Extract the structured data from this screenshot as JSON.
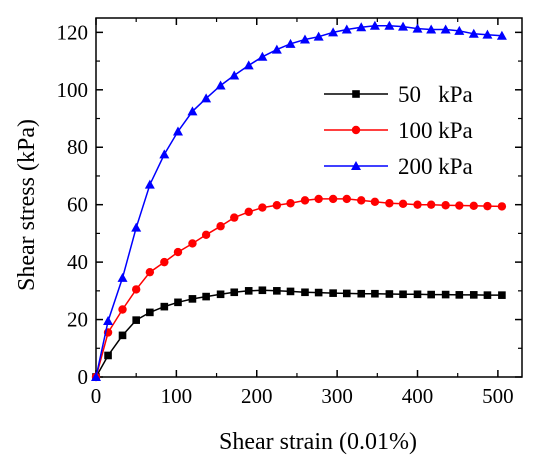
{
  "chart_data": {
    "type": "line",
    "xlabel": "Shear strain (0.01%)",
    "ylabel": "Shear stress (kPa)",
    "xlim": [
      0,
      530
    ],
    "ylim": [
      0,
      125
    ],
    "xticks": [
      0,
      100,
      200,
      300,
      400,
      500
    ],
    "yticks": [
      0,
      20,
      40,
      60,
      80,
      100,
      120
    ],
    "grid": false,
    "legend_position": "top-right",
    "series": [
      {
        "name": "50   kPa",
        "color": "#000000",
        "marker": "square",
        "x": [
          0,
          15,
          33,
          50,
          67,
          85,
          102,
          120,
          137,
          155,
          172,
          190,
          207,
          225,
          242,
          260,
          277,
          295,
          312,
          330,
          347,
          365,
          382,
          400,
          417,
          435,
          452,
          470,
          487,
          505
        ],
        "y": [
          0,
          7.5,
          14.5,
          19.8,
          22.5,
          24.5,
          26,
          27.2,
          28,
          28.8,
          29.5,
          30,
          30.2,
          30,
          29.8,
          29.5,
          29.4,
          29.2,
          29.1,
          29,
          29,
          28.9,
          28.8,
          28.8,
          28.7,
          28.7,
          28.6,
          28.6,
          28.5,
          28.5
        ]
      },
      {
        "name": "100 kPa",
        "color": "#ff0000",
        "marker": "circle",
        "x": [
          0,
          15,
          33,
          50,
          67,
          85,
          102,
          120,
          137,
          155,
          172,
          190,
          207,
          225,
          242,
          260,
          277,
          295,
          312,
          330,
          347,
          365,
          382,
          400,
          417,
          435,
          452,
          470,
          487,
          505
        ],
        "y": [
          0,
          15.5,
          23.5,
          30.5,
          36.5,
          40,
          43.5,
          46.5,
          49.5,
          52.5,
          55.5,
          57.5,
          59,
          59.8,
          60.5,
          61.5,
          62,
          62,
          62,
          61.5,
          61,
          60.5,
          60.3,
          60,
          60,
          59.8,
          59.7,
          59.6,
          59.5,
          59.4
        ]
      },
      {
        "name": "200 kPa",
        "color": "#0000ff",
        "marker": "triangle",
        "x": [
          0,
          15,
          33,
          50,
          67,
          85,
          102,
          120,
          137,
          155,
          172,
          190,
          207,
          225,
          242,
          260,
          277,
          295,
          312,
          330,
          347,
          365,
          382,
          400,
          417,
          435,
          452,
          470,
          487,
          505
        ],
        "y": [
          0,
          19.5,
          34.5,
          52,
          67,
          77.5,
          85.5,
          92.5,
          97,
          101.5,
          105,
          108.5,
          111.5,
          114,
          116,
          117.5,
          118.5,
          120,
          121,
          121.8,
          122.3,
          122.3,
          122,
          121.3,
          121,
          121,
          120.5,
          119.5,
          119.2,
          118.8
        ]
      }
    ]
  }
}
